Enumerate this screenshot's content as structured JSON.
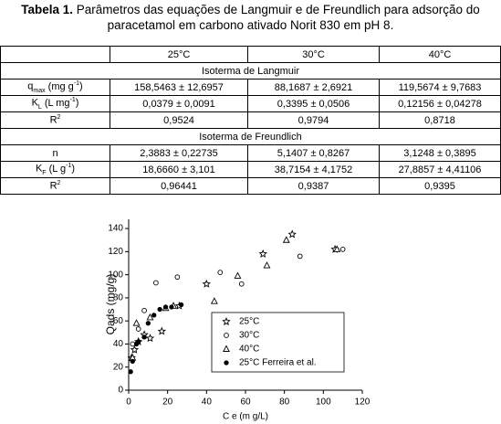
{
  "caption": {
    "label": "Tabela 1.",
    "text": "Parâmetros das equações de Langmuir e de Freundlich para adsorção do paracetamol em carbono ativado Norit 830 em pH 8."
  },
  "table": {
    "header": [
      "25°C",
      "30°C",
      "40°C"
    ],
    "rows": [
      {
        "section": "Isoterma de Langmuir"
      },
      {
        "label": {
          "base": "q",
          "sub": "max",
          "unit": "(mg g",
          "sup": "-1",
          "close": ")"
        },
        "cells": [
          "158,5463 ± 12,6957",
          "88,1687 ± 2,6921",
          "119,5674 ± 9,7683"
        ]
      },
      {
        "label": {
          "base": "K",
          "sub": "L",
          "unit": "(L mg",
          "sup": "-1",
          "close": ")"
        },
        "cells": [
          "0,0379 ± 0,0091",
          "0,3395 ± 0,0506",
          "0,12156 ± 0,04278"
        ]
      },
      {
        "label": {
          "base": "R",
          "sup": "2"
        },
        "cells": [
          "0,9524",
          "0,9794",
          "0,8718"
        ]
      },
      {
        "section": "Isoterma de Freundlich"
      },
      {
        "label": {
          "base": "n"
        },
        "cells": [
          "2,3883 ± 0,22735",
          "5,1407 ± 0,8267",
          "3,1248 ± 0,3895"
        ]
      },
      {
        "label": {
          "base": "K",
          "sub": "F",
          "unit": "(L g",
          "sup": "-1",
          "close": ")"
        },
        "cells": [
          "18,6660 ± 3,101",
          "38,7154 ± 4,1752",
          "27,8857 ± 4,41106"
        ]
      },
      {
        "label": {
          "base": "R",
          "sup": "2"
        },
        "cells": [
          "0,96441",
          "0,9387",
          "0,9395"
        ]
      }
    ]
  },
  "chart_data": {
    "type": "scatter",
    "x_label": "C e (m g/L)",
    "y_label": "Qads (mg/g)",
    "xlim": [
      0,
      120
    ],
    "ylim": [
      0,
      148
    ],
    "xticks": [
      0,
      20,
      40,
      60,
      80,
      100,
      120
    ],
    "yticks": [
      0,
      20,
      40,
      60,
      80,
      100,
      120,
      140
    ],
    "color": "#000000",
    "series": [
      {
        "name": "25°C",
        "marker": "star",
        "x": [
          1.5,
          3,
          5,
          8,
          11,
          17,
          26,
          40,
          69,
          84,
          106
        ],
        "values": [
          28,
          35,
          42,
          48,
          45,
          51,
          73,
          92,
          118,
          135,
          122
        ]
      },
      {
        "name": "30°C",
        "marker": "circle",
        "x": [
          2,
          5,
          8,
          14,
          25,
          47,
          58,
          88,
          110
        ],
        "values": [
          40,
          53,
          69,
          93,
          98,
          102,
          92,
          116,
          122
        ]
      },
      {
        "name": "40°C",
        "marker": "triangle",
        "x": [
          2,
          4,
          11,
          19,
          23,
          44,
          56,
          71,
          81,
          107
        ],
        "values": [
          28,
          58,
          63,
          71,
          73,
          77,
          99,
          108,
          130,
          122
        ]
      },
      {
        "name": "25°C Ferreira et al.",
        "marker": "dot",
        "x": [
          1,
          2,
          4,
          5,
          8,
          10,
          13,
          16,
          19,
          22,
          27
        ],
        "values": [
          16,
          25,
          40,
          42,
          46,
          58,
          65,
          70,
          72,
          72,
          74
        ]
      }
    ]
  }
}
